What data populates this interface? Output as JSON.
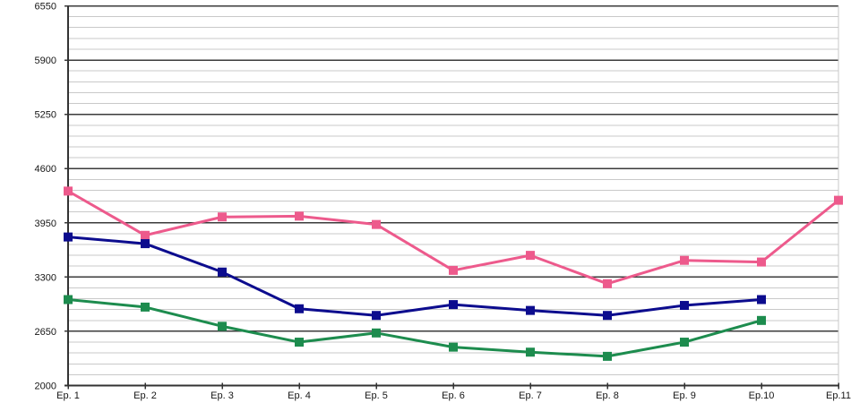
{
  "chart_data": {
    "type": "line",
    "title": "",
    "xlabel": "",
    "ylabel": "",
    "categories": [
      "Ep. 1",
      "Ep. 2",
      "Ep. 3",
      "Ep. 4",
      "Ep. 5",
      "Ep. 6",
      "Ep. 7",
      "Ep. 8",
      "Ep. 9",
      "Ep.10",
      "Ep.11"
    ],
    "series": [
      {
        "name": "pink-series",
        "color": "#ed5a8c",
        "values": [
          4330,
          3800,
          4020,
          4030,
          3930,
          3380,
          3560,
          3220,
          3500,
          3480,
          4220
        ]
      },
      {
        "name": "navy-series",
        "color": "#0c0c8e",
        "values": [
          3780,
          3700,
          3360,
          2920,
          2840,
          2970,
          2900,
          2840,
          2960,
          3030,
          null
        ]
      },
      {
        "name": "green-series",
        "color": "#1d8c4e",
        "values": [
          3030,
          2940,
          2710,
          2520,
          2630,
          2460,
          2400,
          2350,
          2520,
          2780,
          null
        ]
      }
    ],
    "ylim": [
      2000,
      6550
    ],
    "y_major_step": 650,
    "y_minor_step": 130,
    "y_tick_labels": [
      "2000",
      "2650",
      "3300",
      "3950",
      "4600",
      "5250",
      "5900",
      "6550"
    ],
    "grid": "horizontal-major-and-minor",
    "legend": "none",
    "marker": "square",
    "colors": {
      "background": "#ffffff",
      "major_grid": "#3b3b3b",
      "minor_grid": "#c9c9c9",
      "axis": "#333333",
      "tick_text": "#161616"
    }
  }
}
